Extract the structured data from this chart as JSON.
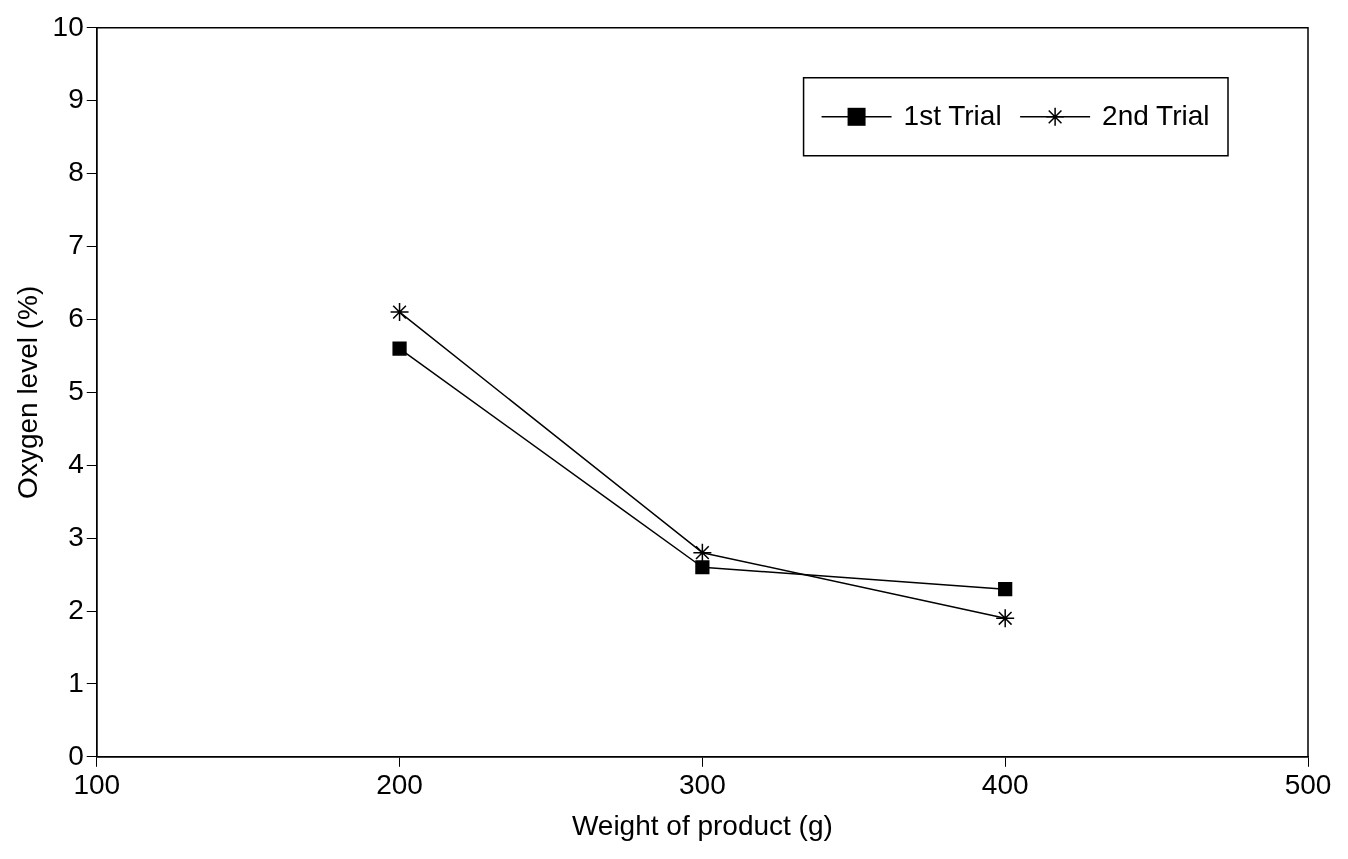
{
  "chart_data": {
    "type": "line",
    "xlabel": "Weight of product (g)",
    "ylabel": "Oxygen level (%)",
    "x": [
      200,
      300,
      400
    ],
    "series": [
      {
        "name": "1st Trial",
        "color": "#000000",
        "marker": "square",
        "values": [
          5.6,
          2.6,
          2.3
        ]
      },
      {
        "name": "2nd Trial",
        "color": "#000000",
        "marker": "cross",
        "values": [
          6.1,
          2.8,
          1.9
        ]
      }
    ],
    "xlim": [
      100,
      500
    ],
    "xticks": [
      100,
      200,
      300,
      400,
      500
    ],
    "ylim": [
      0,
      10
    ],
    "yticks": [
      0,
      1,
      2,
      3,
      4,
      5,
      6,
      7,
      8,
      9,
      10
    ],
    "grid": false,
    "legend": "top right",
    "line_style": "solid"
  }
}
